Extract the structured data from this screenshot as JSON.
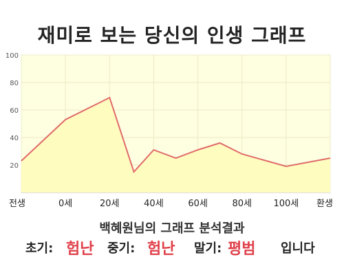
{
  "page_title": "재미로 보는 당신의 인생 그래프",
  "chart_data": {
    "type": "area",
    "x_tick_labels": [
      "전생",
      "0세",
      "20세",
      "40세",
      "60세",
      "80세",
      "100세",
      "환생"
    ],
    "y_tick_labels": [
      "20",
      "40",
      "60",
      "80",
      "100"
    ],
    "ylim": [
      0,
      100
    ],
    "points": [
      {
        "x": -20,
        "y": 23
      },
      {
        "x": 0,
        "y": 53
      },
      {
        "x": 20,
        "y": 69
      },
      {
        "x": 31,
        "y": 15
      },
      {
        "x": 40,
        "y": 31
      },
      {
        "x": 50,
        "y": 25
      },
      {
        "x": 60,
        "y": 31
      },
      {
        "x": 70,
        "y": 36
      },
      {
        "x": 80,
        "y": 28
      },
      {
        "x": 100,
        "y": 19
      },
      {
        "x": 120,
        "y": 25
      }
    ],
    "grid": true,
    "colors": {
      "line": "#e06a6a",
      "fill": "#fffcc0",
      "plot_bg": "#fefee0",
      "grid": "#ececc8"
    }
  },
  "result": {
    "heading": "백혜원님의 그래프 분석결과",
    "early_label": "초기:",
    "early_value": "험난",
    "middle_label": "중기:",
    "middle_value": "험난",
    "late_label": "말기:",
    "late_value": "평범",
    "ending": "입니다"
  }
}
